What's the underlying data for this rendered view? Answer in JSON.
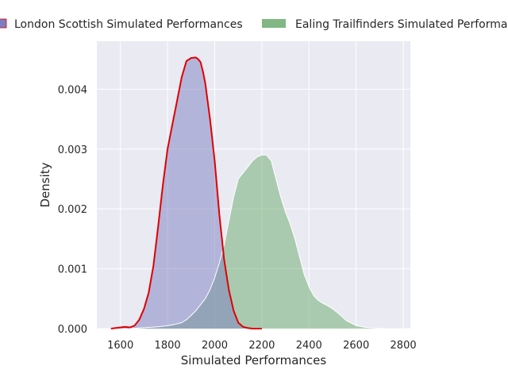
{
  "chart_data": {
    "type": "area",
    "title": "",
    "xlabel": "Simulated Performances",
    "ylabel": "Density",
    "xlim": [
      1500,
      2830
    ],
    "ylim": [
      0,
      0.0048
    ],
    "xticks": [
      1600,
      1800,
      2000,
      2200,
      2400,
      2600,
      2800
    ],
    "xtick_labels": [
      "1600",
      "1800",
      "2000",
      "2200",
      "2400",
      "2600",
      "2800"
    ],
    "yticks": [
      0,
      0.001,
      0.002,
      0.003,
      0.004
    ],
    "ytick_labels": [
      "0.000",
      "0.001",
      "0.002",
      "0.003",
      "0.004"
    ],
    "grid": true,
    "legend": {
      "placement": "top-center, above axes"
    },
    "series": [
      {
        "name": "London Scottish Simulated Performances",
        "fill": "#7b7ec0",
        "line": "#e00000",
        "x": [
          1560,
          1580,
          1600,
          1620,
          1640,
          1660,
          1680,
          1700,
          1720,
          1740,
          1760,
          1780,
          1800,
          1820,
          1840,
          1860,
          1880,
          1900,
          1920,
          1930,
          1940,
          1950,
          1960,
          1980,
          2000,
          2020,
          2040,
          2060,
          2080,
          2100,
          2120,
          2140,
          2160,
          2180,
          2200
        ],
        "y": [
          0.0,
          1e-05,
          2e-05,
          3e-05,
          2e-05,
          5e-05,
          0.00015,
          0.00033,
          0.0006,
          0.00105,
          0.0017,
          0.0024,
          0.003,
          0.0034,
          0.0038,
          0.0042,
          0.00447,
          0.00452,
          0.00453,
          0.0045,
          0.00445,
          0.0043,
          0.0041,
          0.0035,
          0.0028,
          0.0019,
          0.00115,
          0.00065,
          0.0003,
          0.0001,
          3e-05,
          1e-05,
          0.0,
          0.0,
          0.0
        ]
      },
      {
        "name": "Ealing Trailfinders Simulated Performances",
        "fill": "#6aaa6e",
        "line": "#ffffff",
        "x": [
          1640,
          1680,
          1720,
          1760,
          1800,
          1830,
          1860,
          1880,
          1900,
          1920,
          1940,
          1960,
          1980,
          2000,
          2020,
          2040,
          2060,
          2080,
          2100,
          2120,
          2140,
          2160,
          2180,
          2200,
          2220,
          2240,
          2260,
          2280,
          2300,
          2320,
          2340,
          2360,
          2380,
          2400,
          2420,
          2440,
          2460,
          2480,
          2500,
          2520,
          2540,
          2560,
          2600,
          2640,
          2680,
          2720,
          2760,
          2800
        ],
        "y": [
          0.0,
          1e-05,
          2e-05,
          3e-05,
          5e-05,
          7e-05,
          0.0001,
          0.00015,
          0.00022,
          0.0003,
          0.0004,
          0.0005,
          0.00065,
          0.00085,
          0.0011,
          0.0014,
          0.0018,
          0.0022,
          0.0025,
          0.0026,
          0.0027,
          0.0028,
          0.00287,
          0.0029,
          0.0029,
          0.0028,
          0.0025,
          0.0022,
          0.00195,
          0.00175,
          0.0015,
          0.0012,
          0.0009,
          0.0007,
          0.00055,
          0.00047,
          0.00042,
          0.00038,
          0.00033,
          0.00027,
          0.0002,
          0.00013,
          5e-05,
          2e-05,
          1e-05,
          0.0,
          0.0,
          0.0
        ]
      }
    ]
  }
}
